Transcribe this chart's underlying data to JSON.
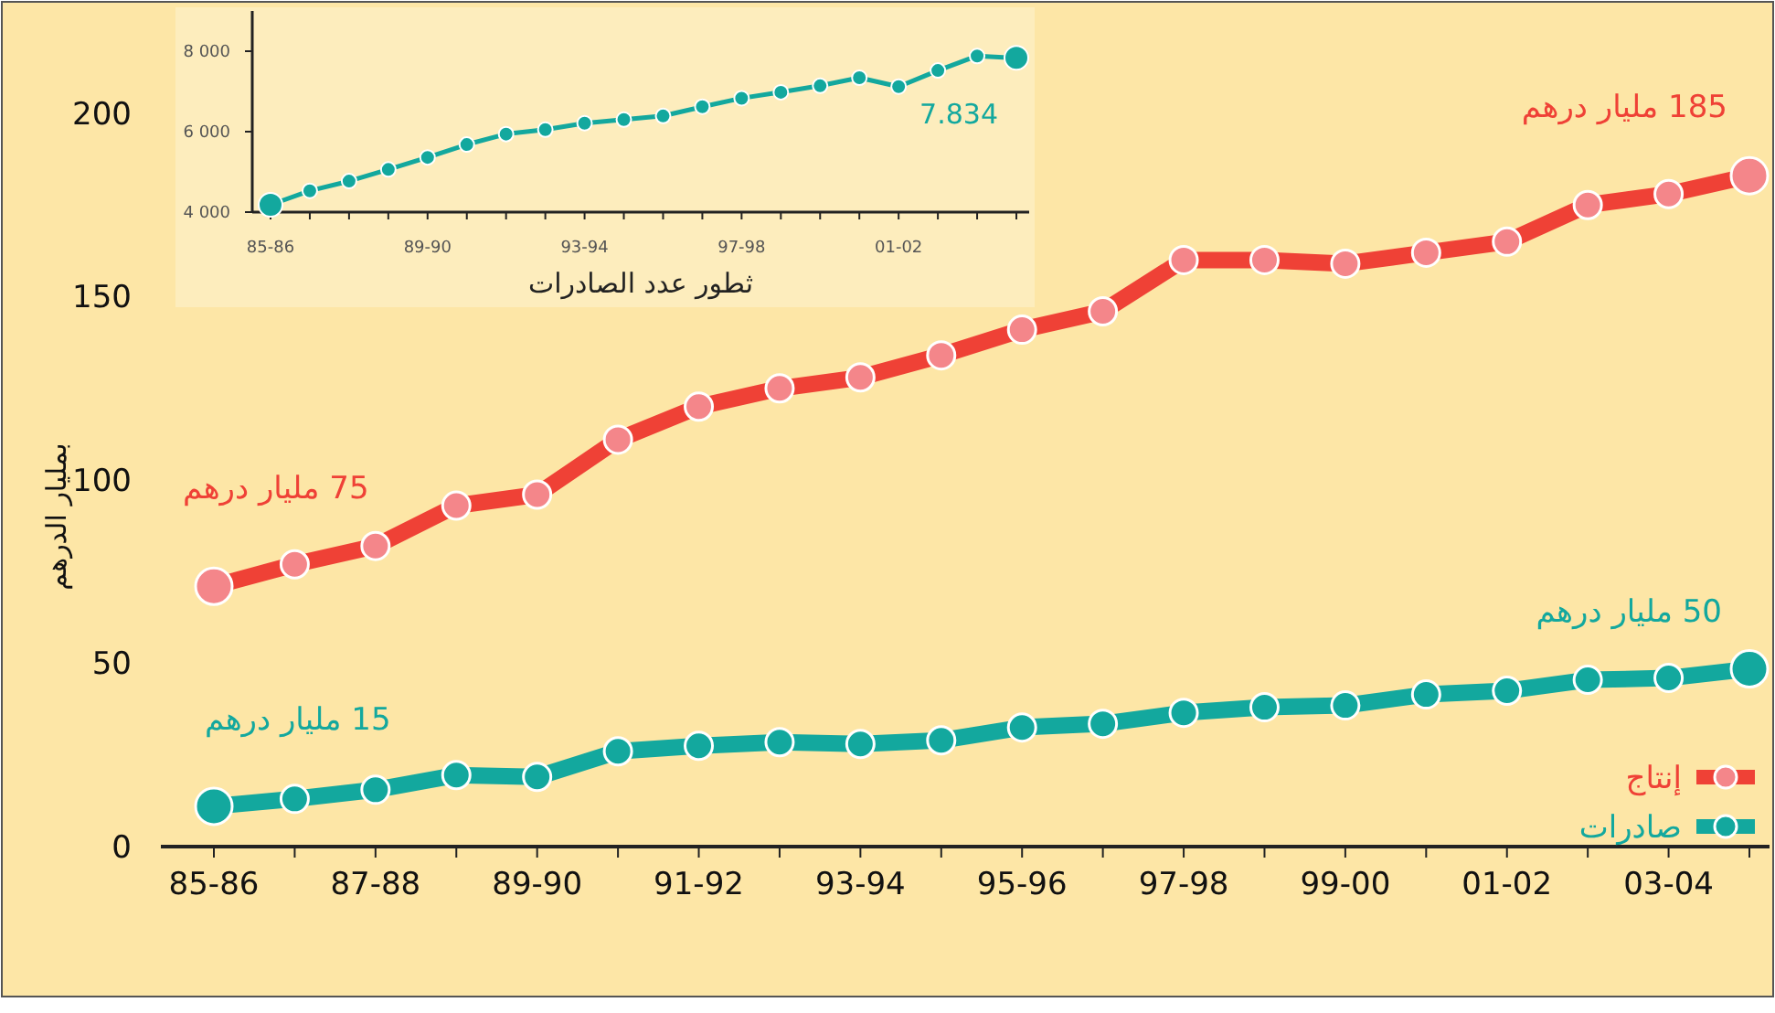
{
  "chart_data": [
    {
      "type": "line",
      "ylabel": "بمليار الدرهم",
      "categories": [
        "85-86",
        null,
        "87-88",
        null,
        "89-90",
        null,
        "91-92",
        null,
        "93-94",
        null,
        "95-96",
        null,
        "97-98",
        null,
        "99-00",
        null,
        "01-02",
        null,
        "03-04",
        null
      ],
      "series": [
        {
          "name": "إنتاج",
          "color": "#ef4136",
          "values": [
            71,
            77,
            82,
            93,
            96,
            111,
            120,
            125,
            128,
            134,
            141,
            146,
            160,
            160,
            159,
            162,
            165,
            175,
            178,
            183
          ]
        },
        {
          "name": "صادرات",
          "color": "#13a89e",
          "values": [
            11,
            13,
            15.5,
            19.5,
            19,
            26,
            27.5,
            28.5,
            28,
            29,
            32.5,
            33.5,
            36.5,
            38,
            38.5,
            41.5,
            42.5,
            45.5,
            46,
            48.5
          ]
        }
      ],
      "ylim": [
        0,
        200
      ],
      "yticks": [
        0,
        50,
        100,
        150,
        200
      ],
      "marker": "circle",
      "line_style": "solid",
      "legend": "bottom right",
      "annotations": [
        {
          "text": "75 مليار درهم",
          "x": "85-86",
          "y": 71
        },
        "185 مليار درهم",
        {
          "text": "15 مليار درهم",
          "x": "85-86",
          "y": 11
        },
        "50 مليار درهم"
      ]
    },
    {
      "type": "line",
      "xlabel": "ثطور عدد الصادرات",
      "categories": [
        "85-86",
        null,
        null,
        null,
        "89-90",
        null,
        null,
        null,
        "93-94",
        null,
        null,
        null,
        "97-98",
        null,
        null,
        null,
        "01-02",
        null,
        null,
        null
      ],
      "series": [
        {
          "color": "#13a89e",
          "values": [
            4180,
            4530,
            4770,
            5060,
            5360,
            5680,
            5940,
            6050,
            6210,
            6300,
            6390,
            6620,
            6830,
            6980,
            7140,
            7340,
            7120,
            7520,
            7880,
            7834
          ]
        }
      ],
      "ylim": [
        4000,
        9000
      ],
      "yticks": [
        {
          "value": 4000,
          "label": "4 000"
        },
        {
          "value": 6000,
          "label": "6 000"
        },
        {
          "value": 8000,
          "label": "8 000"
        }
      ],
      "marker": "circle",
      "line_style": "solid",
      "annotations": [
        {
          "text": "7.834",
          "y": 7834
        }
      ]
    }
  ]
}
